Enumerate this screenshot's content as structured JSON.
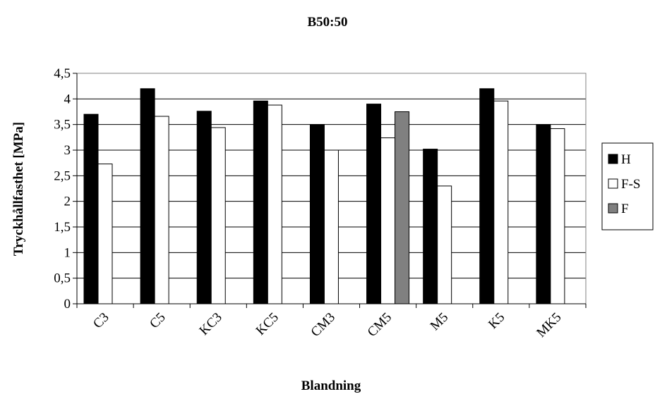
{
  "chart_data": {
    "type": "bar",
    "title": "B50:50",
    "xlabel": "Blandning",
    "ylabel": "Tryckhållfasthet  [MPa]",
    "categories": [
      "C3",
      "C5",
      "KC3",
      "KC5",
      "CM3",
      "CM5",
      "M5",
      "K5",
      "MK5"
    ],
    "ylim": [
      0,
      4.5
    ],
    "yticks": [
      "0",
      "0,5",
      "1",
      "1,5",
      "2",
      "2,5",
      "3",
      "3,5",
      "4",
      "4,5"
    ],
    "grid": true,
    "legend_position": "right",
    "series": [
      {
        "name": "H",
        "color": "#000000",
        "values": [
          3.7,
          4.2,
          3.76,
          3.96,
          3.5,
          3.9,
          3.02,
          4.2,
          3.5
        ]
      },
      {
        "name": "F-S",
        "color": "#ffffff",
        "values": [
          2.73,
          3.66,
          3.44,
          3.88,
          3.0,
          3.24,
          2.3,
          3.96,
          3.42
        ]
      },
      {
        "name": "F",
        "color": "#808080",
        "values": [
          null,
          null,
          null,
          null,
          null,
          3.75,
          null,
          null,
          null
        ]
      }
    ]
  }
}
